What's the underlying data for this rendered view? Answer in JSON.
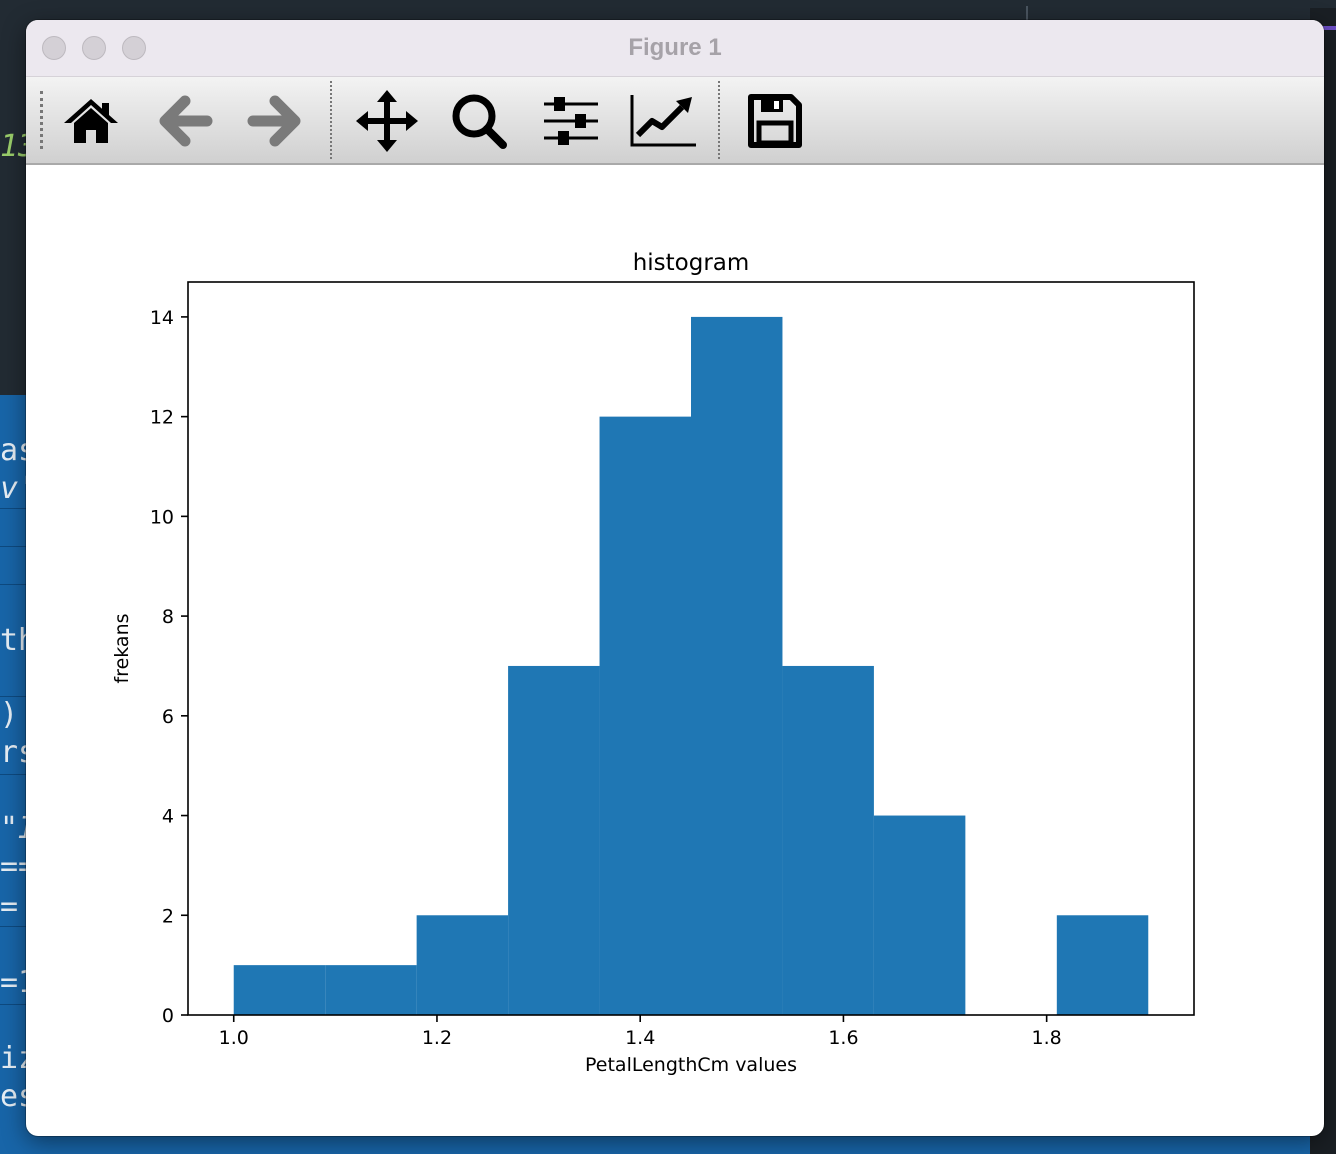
{
  "window": {
    "title": "Figure 1"
  },
  "toolbar": {
    "buttons": [
      {
        "icon": "home-icon",
        "label": "Home"
      },
      {
        "icon": "back-arrow-icon",
        "label": "Back"
      },
      {
        "icon": "forward-arrow-icon",
        "label": "Forward"
      },
      {
        "icon": "pan-icon",
        "label": "Pan"
      },
      {
        "icon": "zoom-icon",
        "label": "Zoom"
      },
      {
        "icon": "configure-subplots-icon",
        "label": "Subplots"
      },
      {
        "icon": "edit-axes-icon",
        "label": "Customize"
      },
      {
        "icon": "save-icon",
        "label": "Save"
      }
    ]
  },
  "background_code": {
    "fragments": [
      "13",
      "as",
      "v'",
      "th",
      ")",
      "rs",
      "\"I",
      "==",
      "=",
      "=1",
      "iz",
      "es"
    ]
  },
  "chart_data": {
    "type": "bar",
    "title": "histogram",
    "xlabel": "PetalLengthCm values",
    "ylabel": "frekans",
    "bin_edges": [
      1.0,
      1.09,
      1.18,
      1.27,
      1.36,
      1.45,
      1.54,
      1.63,
      1.72,
      1.81,
      1.9
    ],
    "values": [
      1,
      1,
      2,
      7,
      12,
      14,
      7,
      4,
      0,
      2
    ],
    "xlim": [
      0.955,
      1.945
    ],
    "ylim": [
      0,
      14.7
    ],
    "xticks": [
      "1.0",
      "1.2",
      "1.4",
      "1.6",
      "1.8"
    ],
    "xtick_values": [
      1.0,
      1.2,
      1.4,
      1.6,
      1.8
    ],
    "yticks": [
      "0",
      "2",
      "4",
      "6",
      "8",
      "10",
      "12",
      "14"
    ],
    "ytick_values": [
      0,
      2,
      4,
      6,
      8,
      10,
      12,
      14
    ],
    "color": "#1f77b4",
    "grid": false,
    "legend": false
  }
}
